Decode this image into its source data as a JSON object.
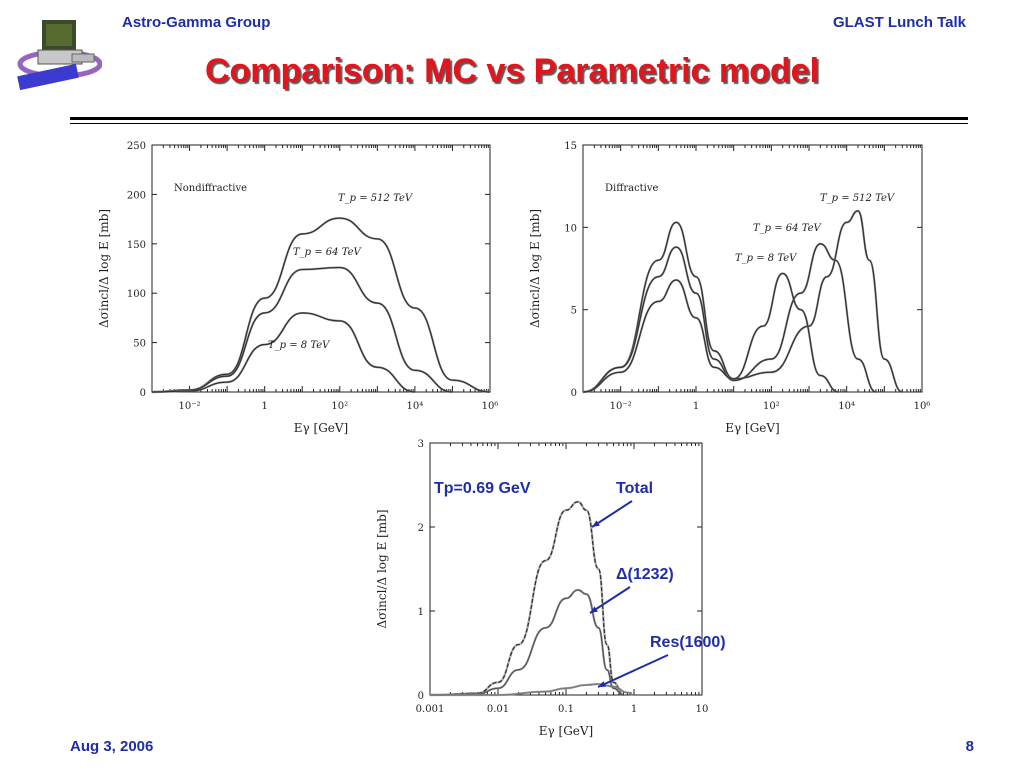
{
  "header": {
    "left": "Astro-Gamma Group",
    "right": "GLAST Lunch Talk"
  },
  "slide_title": "Comparison: MC vs Parametric model",
  "footer": {
    "date": "Aug 3, 2006",
    "page": "8"
  },
  "colors": {
    "title": "#e3141b",
    "accent": "#1f2ea8",
    "curve": "#333333",
    "mc": "#8a8a8a"
  },
  "chart_data": [
    {
      "type": "line",
      "label": "Nondiffractive",
      "xlabel": "Eγ [GeV]",
      "ylabel": "Δσincl/Δ log E [mb]",
      "xscale": "log",
      "xlim": [
        0.001,
        1000000
      ],
      "ylim": [
        0,
        250
      ],
      "xticks": [
        "10⁻²",
        "1",
        "10²",
        "10⁴",
        "10⁶"
      ],
      "yticks": [
        "0",
        "50",
        "100",
        "150",
        "200",
        "250"
      ],
      "series": [
        {
          "name": "T_p = 512 TeV",
          "x": [
            0.001,
            0.01,
            0.1,
            1,
            10,
            100,
            1000,
            10000,
            100000,
            1000000
          ],
          "y": [
            0,
            2,
            18,
            95,
            160,
            176,
            155,
            85,
            12,
            0
          ]
        },
        {
          "name": "T_p = 64 TeV",
          "x": [
            0.001,
            0.01,
            0.1,
            1,
            10,
            100,
            1000,
            10000,
            100000
          ],
          "y": [
            0,
            2,
            16,
            80,
            124,
            126,
            90,
            22,
            0
          ]
        },
        {
          "name": "T_p = 8 TeV",
          "x": [
            0.001,
            0.01,
            0.1,
            1,
            10,
            100,
            1000,
            10000
          ],
          "y": [
            0,
            1,
            10,
            48,
            80,
            72,
            25,
            0
          ]
        }
      ],
      "annotations": [
        {
          "text": "T_p = 512 TeV",
          "x": 1000,
          "y": 195
        },
        {
          "text": "T_p = 64 TeV",
          "x": 300,
          "y": 143
        },
        {
          "text": "T_p = 8 TeV",
          "x": 30,
          "y": 49
        }
      ]
    },
    {
      "type": "line",
      "label": "Diffractive",
      "xlabel": "Eγ [GeV]",
      "ylabel": "Δσincl/Δ log E [mb]",
      "xscale": "log",
      "xlim": [
        0.001,
        1000000
      ],
      "ylim": [
        0,
        15
      ],
      "xticks": [
        "10⁻²",
        "1",
        "10²",
        "10⁴",
        "10⁶"
      ],
      "yticks": [
        "0",
        "5",
        "10",
        "15"
      ],
      "series": [
        {
          "name": "T_p = 512 TeV",
          "x": [
            0.001,
            0.01,
            0.1,
            0.3,
            1,
            3,
            10,
            100,
            1000,
            3000,
            10000,
            20000,
            40000,
            100000,
            300000
          ],
          "y": [
            0,
            1.5,
            8,
            10.3,
            7,
            2.5,
            0.8,
            1.2,
            4,
            7,
            10.3,
            11,
            8,
            2,
            0
          ]
        },
        {
          "name": "T_p = 64 TeV",
          "x": [
            0.001,
            0.01,
            0.1,
            0.3,
            1,
            3,
            10,
            100,
            600,
            2000,
            5000,
            20000,
            60000
          ],
          "y": [
            0,
            1.5,
            7,
            8.8,
            6,
            2,
            0.7,
            2,
            6,
            9,
            8,
            2,
            0
          ]
        },
        {
          "name": "T_p = 8 TeV",
          "x": [
            0.001,
            0.01,
            0.1,
            0.3,
            1,
            3,
            10,
            60,
            200,
            600,
            2000,
            6000
          ],
          "y": [
            0,
            1.2,
            5.5,
            6.8,
            4.5,
            1.5,
            0.8,
            4,
            7.2,
            5,
            1,
            0
          ]
        }
      ],
      "annotations": [
        {
          "text": "T_p = 512 TeV",
          "x": 30000,
          "y": 11.6
        },
        {
          "text": "T_p = 64 TeV",
          "x": 300,
          "y": 9.7
        },
        {
          "text": "T_p = 8 TeV",
          "x": 30,
          "y": 8.0
        }
      ]
    },
    {
      "type": "line",
      "xlabel": "Eγ [GeV]",
      "ylabel": "Δσincl/Δ log E [mb]",
      "xscale": "log",
      "xlim": [
        0.001,
        10
      ],
      "ylim": [
        0,
        3
      ],
      "xticks": [
        "0.001",
        "0.01",
        "0.1",
        "1",
        "10"
      ],
      "yticks": [
        "0",
        "1",
        "2",
        "3"
      ],
      "series": [
        {
          "name": "Total",
          "x": [
            0.001,
            0.005,
            0.01,
            0.02,
            0.05,
            0.1,
            0.15,
            0.2,
            0.3,
            0.4,
            0.5,
            0.7
          ],
          "y": [
            0,
            0.02,
            0.15,
            0.6,
            1.6,
            2.2,
            2.3,
            2.2,
            1.5,
            0.6,
            0.15,
            0
          ]
        },
        {
          "name": "Δ(1232)",
          "x": [
            0.001,
            0.005,
            0.01,
            0.02,
            0.05,
            0.1,
            0.15,
            0.2,
            0.3,
            0.4,
            0.5,
            0.7
          ],
          "y": [
            0,
            0.01,
            0.08,
            0.3,
            0.8,
            1.15,
            1.25,
            1.2,
            0.8,
            0.3,
            0.08,
            0
          ]
        },
        {
          "name": "Res(1600)",
          "x": [
            0.001,
            0.01,
            0.05,
            0.1,
            0.2,
            0.3,
            0.5,
            0.8,
            1
          ],
          "y": [
            0,
            0,
            0.04,
            0.08,
            0.12,
            0.13,
            0.1,
            0.03,
            0
          ]
        }
      ],
      "annotations": [
        {
          "text": "Tp=0.69 GeV"
        },
        {
          "text": "Total"
        },
        {
          "text": "Δ(1232)"
        },
        {
          "text": "Res(1600)"
        }
      ]
    }
  ]
}
